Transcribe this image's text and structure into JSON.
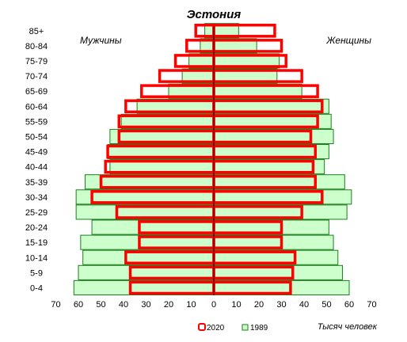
{
  "chart_data": {
    "type": "bar",
    "orientation": "horizontal",
    "layout": "population-pyramid",
    "title": "Эстония",
    "left_label": "Мужчины",
    "right_label": "Женщины",
    "xlabel": "Тысяч человек",
    "xlim": [
      -70,
      70
    ],
    "xticks": [
      "70",
      "60",
      "50",
      "40",
      "30",
      "20",
      "10",
      "0",
      "10",
      "20",
      "30",
      "40",
      "50",
      "60",
      "70"
    ],
    "categories": [
      "0-4",
      "5-9",
      "10-14",
      "15-19",
      "20-24",
      "25-29",
      "30-34",
      "35-39",
      "40-44",
      "45-49",
      "50-54",
      "55-59",
      "60-64",
      "65-69",
      "70-74",
      "75-79",
      "80-84",
      "85+"
    ],
    "series": [
      {
        "name": "1989",
        "color": "#ccffcc",
        "stroke": "#1a7f1a",
        "style": "filled",
        "male": [
          62,
          60,
          58,
          59,
          54,
          61,
          61,
          57,
          46,
          47,
          46,
          41,
          34,
          20,
          14,
          11,
          6,
          4
        ],
        "female": [
          60,
          57,
          55,
          53,
          51,
          59,
          61,
          58,
          49,
          51,
          53,
          52,
          51,
          39,
          28,
          29,
          19,
          11
        ]
      },
      {
        "name": "2020",
        "color": "#ff0000",
        "style": "outline",
        "male": [
          37,
          37,
          39,
          33,
          33,
          43,
          54,
          50,
          48,
          47,
          42,
          42,
          39,
          32,
          24,
          17,
          12,
          8
        ],
        "female": [
          34,
          35,
          36,
          30,
          30,
          39,
          48,
          45,
          44,
          45,
          43,
          46,
          48,
          46,
          39,
          32,
          30,
          27
        ]
      }
    ],
    "legend": {
      "position": "bottom-center",
      "entries": [
        "2020",
        "1989"
      ]
    },
    "grid": false
  }
}
